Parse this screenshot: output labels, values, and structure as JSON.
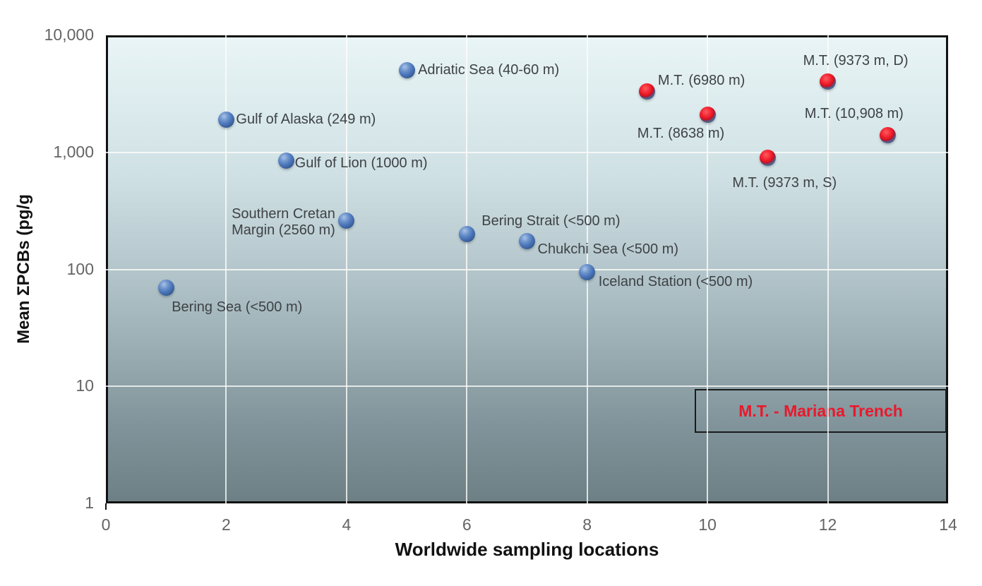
{
  "chart_data": {
    "type": "scatter",
    "title": "",
    "xlabel": "Worldwide sampling locations",
    "ylabel": "Mean ΣPCBs (pg/g",
    "xlim": [
      0,
      14
    ],
    "ylim": [
      1,
      10000
    ],
    "y_scale": "log",
    "grid": true,
    "x_ticks": [
      {
        "value": 0,
        "label": "0"
      },
      {
        "value": 2,
        "label": "2"
      },
      {
        "value": 4,
        "label": "4"
      },
      {
        "value": 6,
        "label": "6"
      },
      {
        "value": 8,
        "label": "8"
      },
      {
        "value": 10,
        "label": "10"
      },
      {
        "value": 12,
        "label": "12"
      },
      {
        "value": 14,
        "label": "14"
      }
    ],
    "y_ticks": [
      {
        "value": 10000,
        "label": "10,000"
      },
      {
        "value": 1000,
        "label": "1,000"
      },
      {
        "value": 100,
        "label": "100"
      },
      {
        "value": 10,
        "label": "10"
      },
      {
        "value": 1,
        "label": "1"
      }
    ],
    "x_gridlines": [
      2,
      4,
      6,
      8,
      10,
      12
    ],
    "y_gridlines": [
      1000,
      100,
      10
    ],
    "legend": {
      "text": "M.T. - Mariana Trench",
      "text_color": "#e8192c",
      "position": "bottom-right"
    },
    "series": [
      {
        "name": "Worldwide sampling locations",
        "marker_color": "#4a74b8",
        "points": [
          {
            "x": 1,
            "y": 70,
            "label": "Bering Sea (<500 m)",
            "anchor": "start",
            "dx": 8,
            "dy": 17,
            "align": "left"
          },
          {
            "x": 2,
            "y": 1900,
            "label": "Gulf of Alaska (249 m)",
            "anchor": "start",
            "dx": 14,
            "dy": -12,
            "align": "left"
          },
          {
            "x": 3,
            "y": 850,
            "label": "Gulf of Lion (1000 m)",
            "anchor": "start",
            "dx": 12,
            "dy": -7,
            "align": "left"
          },
          {
            "x": 4,
            "y": 260,
            "label": "Southern Cretan\nMargin (2560 m)",
            "anchor": "end",
            "dx": -16,
            "dy": -21,
            "align": "center"
          },
          {
            "x": 5,
            "y": 5000,
            "label": "Adriatic Sea (40-60 m)",
            "anchor": "start",
            "dx": 16,
            "dy": -12,
            "align": "left"
          },
          {
            "x": 6,
            "y": 200,
            "label": "Bering Strait (<500 m)",
            "anchor": "start",
            "dx": 21,
            "dy": -30,
            "align": "left"
          },
          {
            "x": 7,
            "y": 175,
            "label": "Chukchi Sea (<500 m)",
            "anchor": "start",
            "dx": 15,
            "dy": 1,
            "align": "left"
          },
          {
            "x": 8,
            "y": 95,
            "label": "Iceland Station (<500 m)",
            "anchor": "start",
            "dx": 16,
            "dy": 3,
            "align": "left"
          }
        ]
      },
      {
        "name": "Mariana Trench",
        "marker_color": "#ee1c25",
        "points": [
          {
            "x": 9,
            "y": 3300,
            "label": "M.T. (6980 m)",
            "anchor": "start",
            "dx": 15,
            "dy": -27,
            "align": "left"
          },
          {
            "x": 10,
            "y": 2100,
            "label": "M.T. (8638 m)",
            "anchor": "end",
            "dx": 24,
            "dy": 16,
            "align": "right"
          },
          {
            "x": 11,
            "y": 900,
            "label": "M.T. (9373 m, S)",
            "anchor": "start",
            "dx": -50,
            "dy": 25,
            "align": "left"
          },
          {
            "x": 12,
            "y": 4000,
            "label": "M.T. (9373 m, D)",
            "anchor": "start",
            "dx": -35,
            "dy": -41,
            "align": "left"
          },
          {
            "x": 13,
            "y": 1400,
            "label": "M.T. (10,908 m)",
            "anchor": "start",
            "dx": -118,
            "dy": -42,
            "align": "left"
          }
        ]
      }
    ]
  }
}
